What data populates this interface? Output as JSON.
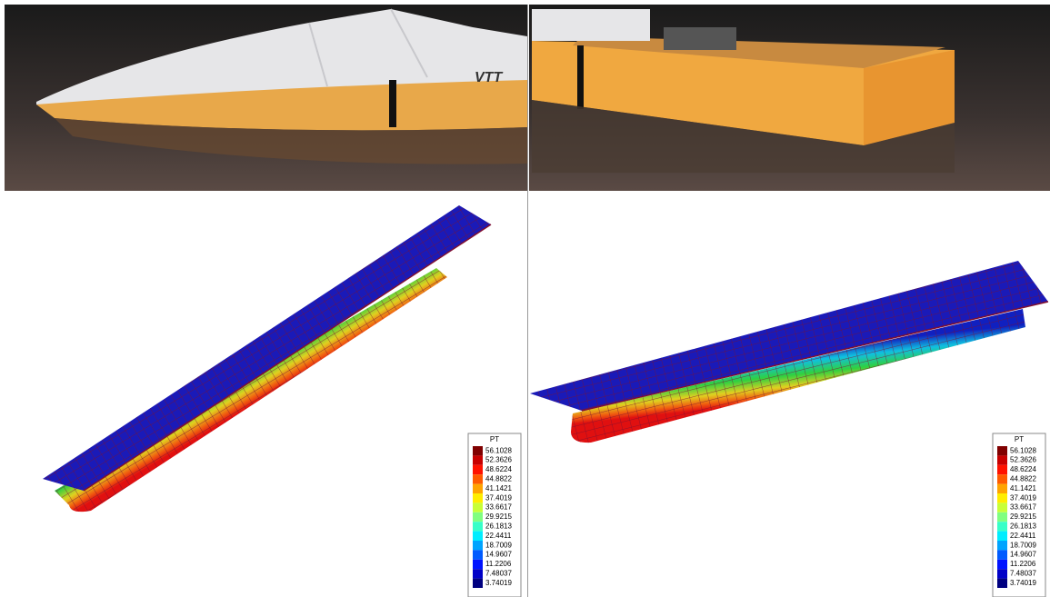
{
  "photos": [
    {
      "hull_mark": "VTT"
    }
  ],
  "panels": [
    {
      "legend": {
        "title": "PT",
        "values": [
          56.1028,
          52.3626,
          48.6224,
          44.8822,
          41.1421,
          37.4019,
          33.6617,
          29.9215,
          26.1813,
          22.4411,
          18.7009,
          14.9607,
          11.2206,
          7.48037,
          3.74019
        ]
      }
    },
    {
      "legend": {
        "title": "PT",
        "values": [
          56.1028,
          52.3626,
          48.6224,
          44.8822,
          41.1421,
          37.4019,
          33.6617,
          29.9215,
          26.1813,
          22.4411,
          18.7009,
          14.9607,
          11.2206,
          7.48037,
          3.74019
        ]
      }
    }
  ]
}
